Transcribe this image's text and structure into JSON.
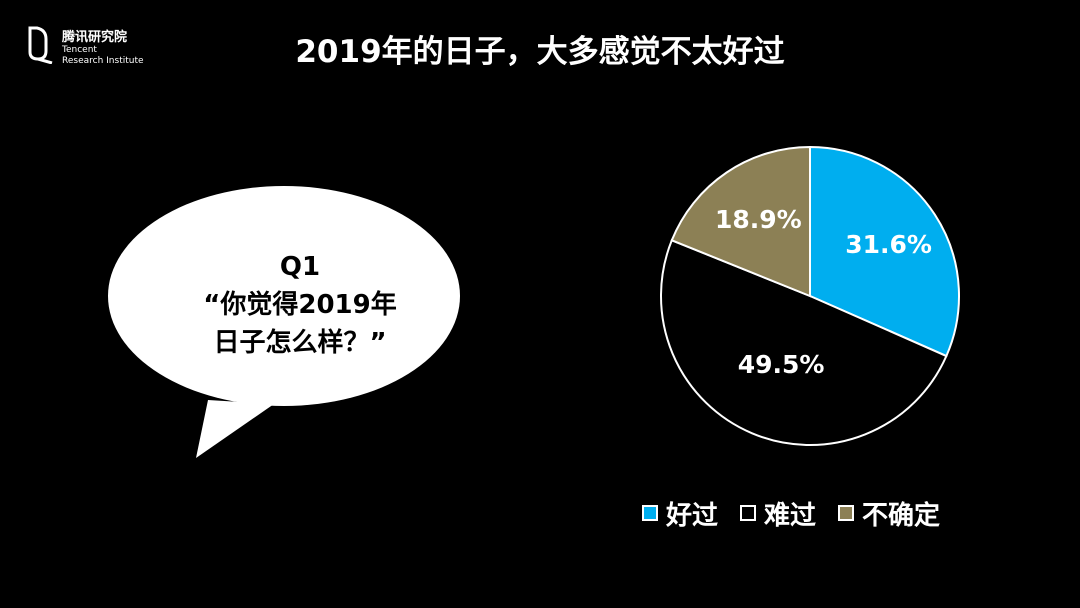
{
  "logo": {
    "name": "腾讯研究院",
    "en_line1": "Tencent",
    "en_line2": "Research Institute"
  },
  "title": "2019年的日子，大多感觉不太好过",
  "bubble": {
    "lines": [
      "Q1",
      "“你觉得2019年",
      "日子怎么样？”"
    ]
  },
  "chart_data": {
    "type": "pie",
    "title": "",
    "categories": [
      "好过",
      "难过",
      "不确定"
    ],
    "values": [
      31.6,
      49.5,
      18.9
    ],
    "labels": [
      "31.6%",
      "49.5%",
      "18.9%"
    ],
    "colors": [
      "#00AEEF",
      "#000000",
      "#8C8055"
    ],
    "start_angle": "12 o'clock",
    "direction": "clockwise",
    "legend_position": "bottom"
  }
}
